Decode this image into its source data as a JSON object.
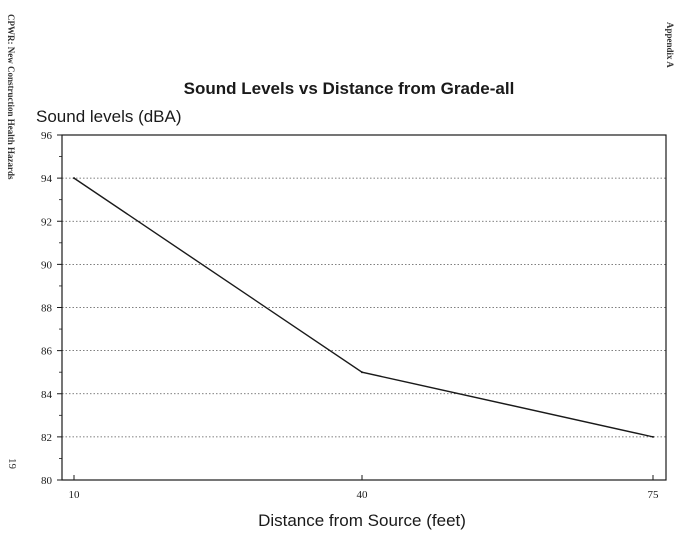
{
  "margin_left": "CPWR: New Construction Health Hazards",
  "margin_right": "Appendix A",
  "page_number": "19",
  "chart_data": {
    "type": "line",
    "title": "Sound Levels vs Distance from Grade-all",
    "ylabel": "Sound levels (dBA)",
    "xlabel": "Distance from Source (feet)",
    "categories": [
      "10",
      "40",
      "75"
    ],
    "values": [
      94,
      85,
      82
    ],
    "ylim": [
      80,
      96
    ],
    "yticks": [
      80,
      82,
      84,
      86,
      88,
      90,
      92,
      94,
      96
    ],
    "grid": true,
    "line_color": "#1a1a1a"
  }
}
